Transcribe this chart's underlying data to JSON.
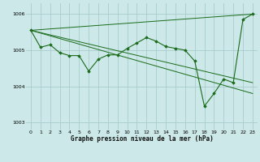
{
  "title": "Graphe pression niveau de la mer (hPa)",
  "background_color": "#cce8e8",
  "grid_color": "#aacccc",
  "line_color": "#1a6b1a",
  "marker_color": "#1a6b1a",
  "xlim": [
    -0.5,
    23.5
  ],
  "ylim": [
    1002.8,
    1006.3
  ],
  "yticks": [
    1003,
    1004,
    1005,
    1006
  ],
  "xticks": [
    0,
    1,
    2,
    3,
    4,
    5,
    6,
    7,
    8,
    9,
    10,
    11,
    12,
    13,
    14,
    15,
    16,
    17,
    18,
    19,
    20,
    21,
    22,
    23
  ],
  "main_series": {
    "x": [
      0,
      1,
      2,
      3,
      4,
      5,
      6,
      7,
      8,
      9,
      10,
      11,
      12,
      13,
      14,
      15,
      16,
      17,
      18,
      19,
      20,
      21,
      22,
      23
    ],
    "y": [
      1005.55,
      1005.08,
      1005.15,
      1004.93,
      1004.85,
      1004.85,
      1004.42,
      1004.75,
      1004.87,
      1004.87,
      1005.05,
      1005.2,
      1005.35,
      1005.25,
      1005.1,
      1005.05,
      1005.0,
      1004.7,
      1003.45,
      1003.8,
      1004.2,
      1004.1,
      1005.85,
      1006.0
    ]
  },
  "straight_lines": [
    {
      "x": [
        0,
        23
      ],
      "y": [
        1005.55,
        1006.0
      ]
    },
    {
      "x": [
        0,
        23
      ],
      "y": [
        1005.55,
        1004.1
      ]
    },
    {
      "x": [
        0,
        23
      ],
      "y": [
        1005.55,
        1003.8
      ]
    }
  ]
}
